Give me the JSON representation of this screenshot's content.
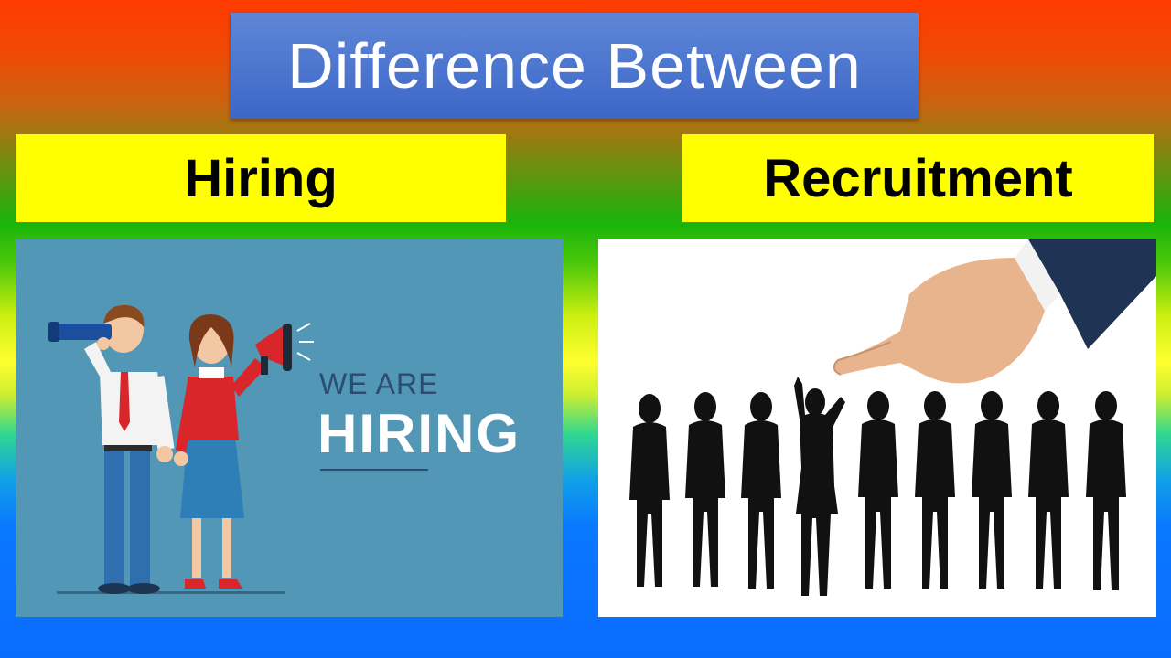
{
  "title": "Difference Between",
  "left_label": "Hiring",
  "right_label": "Recruitment",
  "hiring_image": {
    "line1": "WE ARE",
    "line2": "HIRING"
  },
  "colors": {
    "title_box": "#3b67c8",
    "label_box": "#ffff00",
    "hiring_panel": "#5297b5",
    "recruit_panel": "#ffffff"
  }
}
